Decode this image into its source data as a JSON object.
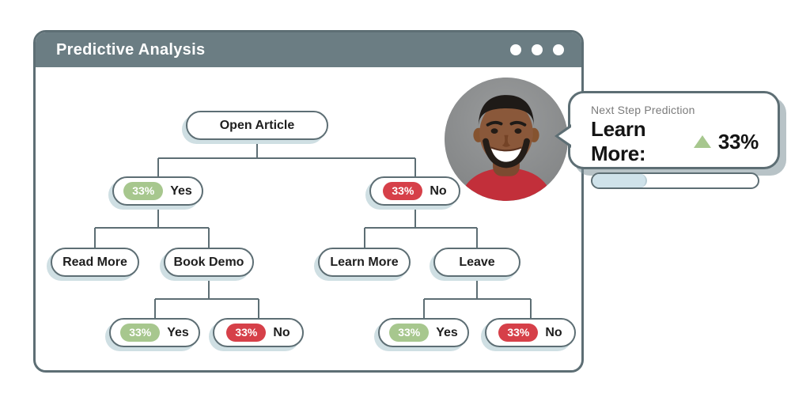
{
  "window": {
    "title": "Predictive Analysis",
    "controls": {
      "dots": 3
    }
  },
  "tree": {
    "root": {
      "label": "Open Article"
    },
    "level2": [
      {
        "badge": "33%",
        "variant": "green",
        "label": "Yes"
      },
      {
        "badge": "33%",
        "variant": "red",
        "label": "No"
      }
    ],
    "level3": [
      {
        "label": "Read More"
      },
      {
        "label": "Book Demo"
      },
      {
        "label": "Learn More"
      },
      {
        "label": "Leave"
      }
    ],
    "level4": [
      {
        "badge": "33%",
        "variant": "green",
        "label": "Yes"
      },
      {
        "badge": "33%",
        "variant": "red",
        "label": "No"
      },
      {
        "badge": "33%",
        "variant": "green",
        "label": "Yes"
      },
      {
        "badge": "33%",
        "variant": "red",
        "label": "No"
      }
    ]
  },
  "avatar": {
    "alt": "Smiling man with short dark hair wearing a red shirt"
  },
  "callout": {
    "eyebrow": "Next Step Prediction",
    "prediction_label": "Learn More:",
    "prediction_value": "33%",
    "trend": "up",
    "progress_percent": 33
  },
  "colors": {
    "header": "#6b7d83",
    "border": "#5d6e74",
    "green": "#a7c78e",
    "red": "#d64049",
    "progress_fill": "#cfe2ea",
    "pill_shadow": "#cfdfe3"
  }
}
